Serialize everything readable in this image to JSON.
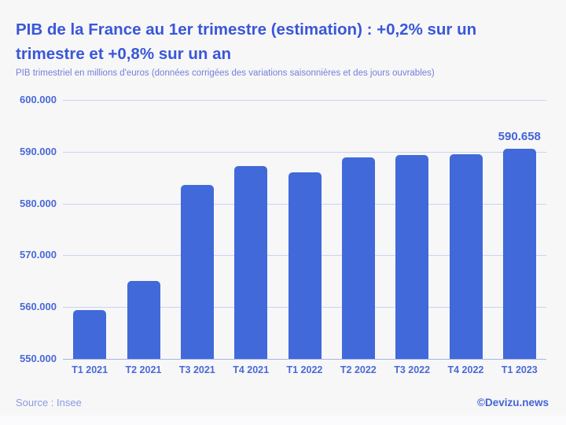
{
  "header": {
    "title": "PIB de la France au 1er trimestre (estimation) : +0,2% sur un trimestre et +0,8% sur un an",
    "subtitle": "PIB trimestriel en millions d'euros (données corrigées des variations saisonnières et des jours ouvrables)"
  },
  "chart_data": {
    "type": "bar",
    "title": "PIB de la France au 1er trimestre (estimation) : +0,2% sur un trimestre et +0,8% sur un an",
    "subtitle": "PIB trimestriel en millions d'euros (données corrigées des variations saisonnières et des jours ouvrables)",
    "categories": [
      "T1 2021",
      "T2 2021",
      "T3 2021",
      "T4 2021",
      "T1 2022",
      "T2 2022",
      "T3 2022",
      "T4 2022",
      "T1 2023"
    ],
    "values": [
      559500,
      565000,
      583600,
      587200,
      586000,
      588900,
      589400,
      589500,
      590658
    ],
    "annotation": {
      "index": 8,
      "label": "590.658"
    },
    "xlabel": "",
    "ylabel": "",
    "ylim": [
      550000,
      600000
    ],
    "yticks": [
      600000,
      590000,
      580000,
      570000,
      560000,
      550000
    ],
    "ytick_labels": [
      "600.000",
      "590.000",
      "580.000",
      "570.000",
      "560.000",
      "550.000"
    ],
    "grid": "horizontal",
    "legend": "none"
  },
  "footer": {
    "source": "Source : Insee",
    "credit": "©Devizu.news"
  },
  "colors": {
    "bar": "#4169d9",
    "title": "#3a57d8",
    "subtitle": "#7381d8",
    "tick_label": "#4969d6",
    "gridline": "#c9d3f2",
    "axis_line": "#a5b5ea",
    "background": "#f7f7f8",
    "source": "#8e99df",
    "credit": "#4365d5"
  }
}
